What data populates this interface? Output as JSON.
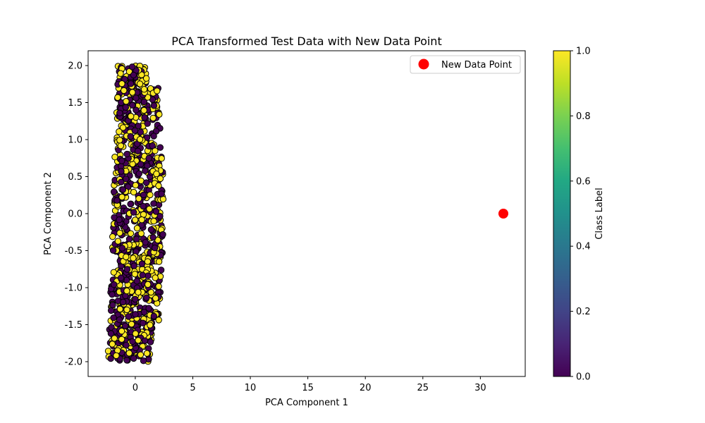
{
  "chart_data": {
    "type": "scatter",
    "title": "PCA Transformed Test Data with New Data Point",
    "xlabel": "PCA Component 1",
    "ylabel": "PCA Component 2",
    "xlim": [
      -4.1,
      33.9
    ],
    "ylim": [
      -2.2,
      2.2
    ],
    "xticks": [
      0,
      5,
      10,
      15,
      20,
      25,
      30
    ],
    "yticks": [
      -2.0,
      -1.5,
      -1.0,
      -0.5,
      0.0,
      0.5,
      1.0,
      1.5,
      2.0
    ],
    "grid": false,
    "legend": {
      "placement": "top-right",
      "entries": [
        {
          "label": "New Data Point",
          "color": "#ff0000"
        }
      ]
    },
    "colorbar": {
      "label": "Class Label",
      "colormap": "viridis",
      "range": [
        0.0,
        1.0
      ],
      "ticks": [
        "0.0",
        "0.2",
        "0.4",
        "0.6",
        "0.8",
        "1.0"
      ]
    },
    "colors": {
      "class_0": "#440154",
      "class_1": "#fde725",
      "edge": "#000000",
      "new_point": "#ff0000"
    },
    "test_data": {
      "description_values": "approximately 1000 points, class labels 0 and 1",
      "x_range": [
        -2.4,
        2.6
      ],
      "y_range": [
        -2.0,
        2.0
      ],
      "count": 1000,
      "classes": [
        0,
        1
      ]
    },
    "new_point": {
      "x": 32.0,
      "y": 0.0,
      "label": "New Data Point"
    }
  }
}
